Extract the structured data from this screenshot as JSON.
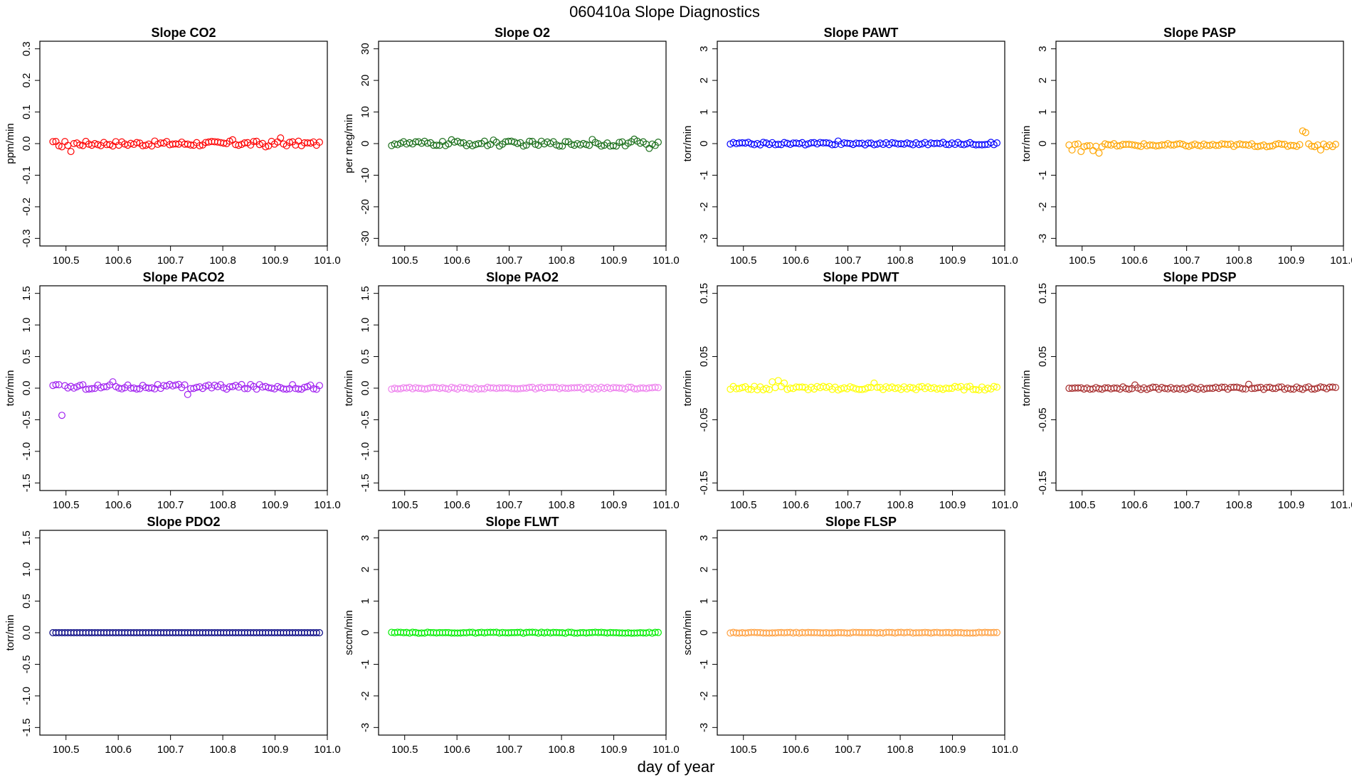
{
  "page": {
    "title": "060410a   Slope Diagnostics",
    "xlabel": "day of year"
  },
  "chart_data": [
    {
      "type": "scatter",
      "title": "Slope CO2",
      "ylabel": "ppm/min",
      "color": "#ff0000",
      "ylim": [
        -0.3,
        0.3
      ],
      "yticks": [
        "-0.3",
        "-0.2",
        "-0.1",
        "0.0",
        "0.1",
        "0.2",
        "0.3"
      ],
      "ytick_values": [
        -0.3,
        -0.2,
        -0.1,
        0.0,
        0.1,
        0.2,
        0.3
      ],
      "xlim": [
        100.45,
        101.0
      ],
      "xticks": [
        "100.5",
        "100.6",
        "100.7",
        "100.8",
        "100.9",
        "101.0"
      ],
      "xtick_values": [
        100.5,
        100.6,
        100.7,
        100.8,
        100.9,
        101.0
      ],
      "x_start": 100.475,
      "x_end": 100.985,
      "n_points": 90,
      "y_base": 0.0,
      "y_noise": 0.008,
      "outliers": [
        {
          "x": 100.49,
          "y": -0.01
        },
        {
          "x": 100.51,
          "y": -0.025
        },
        {
          "x": 100.82,
          "y": 0.012
        },
        {
          "x": 100.91,
          "y": 0.018
        },
        {
          "x": 100.88,
          "y": -0.01
        }
      ]
    },
    {
      "type": "scatter",
      "title": "Slope O2",
      "ylabel": "per meg/min",
      "color": "#1a6e1a",
      "ylim": [
        -30,
        30
      ],
      "yticks": [
        "-30",
        "-20",
        "-10",
        "0",
        "10",
        "20",
        "30"
      ],
      "ytick_values": [
        -30,
        -20,
        -10,
        0,
        10,
        20,
        30
      ],
      "xlim": [
        100.45,
        101.0
      ],
      "xticks": [
        "100.5",
        "100.6",
        "100.7",
        "100.8",
        "100.9",
        "101.0"
      ],
      "xtick_values": [
        100.5,
        100.6,
        100.7,
        100.8,
        100.9,
        101.0
      ],
      "x_start": 100.475,
      "x_end": 100.985,
      "n_points": 90,
      "y_base": 0.0,
      "y_noise": 0.8,
      "outliers": [
        {
          "x": 100.59,
          "y": 1.2
        },
        {
          "x": 100.67,
          "y": 1.1
        },
        {
          "x": 100.86,
          "y": 1.3
        },
        {
          "x": 100.94,
          "y": 1.4
        },
        {
          "x": 100.97,
          "y": -1.5
        }
      ]
    },
    {
      "type": "scatter",
      "title": "Slope PAWT",
      "ylabel": "torr/min",
      "color": "#0000ff",
      "ylim": [
        -3,
        3
      ],
      "yticks": [
        "-3",
        "-2",
        "-1",
        "0",
        "1",
        "2",
        "3"
      ],
      "ytick_values": [
        -3,
        -2,
        -1,
        0,
        1,
        2,
        3
      ],
      "xlim": [
        100.45,
        101.0
      ],
      "xticks": [
        "100.5",
        "100.6",
        "100.7",
        "100.8",
        "100.9",
        "101.0"
      ],
      "xtick_values": [
        100.5,
        100.6,
        100.7,
        100.8,
        100.9,
        101.0
      ],
      "x_start": 100.475,
      "x_end": 100.985,
      "n_points": 90,
      "y_base": 0.0,
      "y_noise": 0.04,
      "outliers": [
        {
          "x": 100.68,
          "y": 0.08
        }
      ]
    },
    {
      "type": "scatter",
      "title": "Slope PASP",
      "ylabel": "torr/min",
      "color": "#ffa500",
      "ylim": [
        -3,
        3
      ],
      "yticks": [
        "-3",
        "-2",
        "-1",
        "0",
        "1",
        "2",
        "3"
      ],
      "ytick_values": [
        -3,
        -2,
        -1,
        0,
        1,
        2,
        3
      ],
      "xlim": [
        100.45,
        101.0
      ],
      "xticks": [
        "100.5",
        "100.6",
        "100.7",
        "100.8",
        "100.9",
        "101.0"
      ],
      "xtick_values": [
        100.5,
        100.6,
        100.7,
        100.8,
        100.9,
        101.0
      ],
      "x_start": 100.475,
      "x_end": 100.985,
      "n_points": 90,
      "y_base": -0.05,
      "y_noise": 0.05,
      "outliers": [
        {
          "x": 100.48,
          "y": -0.2
        },
        {
          "x": 100.5,
          "y": -0.25
        },
        {
          "x": 100.52,
          "y": -0.22
        },
        {
          "x": 100.535,
          "y": -0.3
        },
        {
          "x": 100.92,
          "y": 0.4
        },
        {
          "x": 100.925,
          "y": 0.35
        },
        {
          "x": 100.955,
          "y": -0.2
        }
      ]
    },
    {
      "type": "scatter",
      "title": "Slope PACO2",
      "ylabel": "torr/min",
      "color": "#a020f0",
      "ylim": [
        -1.5,
        1.5
      ],
      "yticks": [
        "-1.5",
        "-1.0",
        "-0.5",
        "0.0",
        "0.5",
        "1.0",
        "1.5"
      ],
      "ytick_values": [
        -1.5,
        -1.0,
        -0.5,
        0.0,
        0.5,
        1.0,
        1.5
      ],
      "xlim": [
        100.45,
        101.0
      ],
      "xticks": [
        "100.5",
        "100.6",
        "100.7",
        "100.8",
        "100.9",
        "101.0"
      ],
      "xtick_values": [
        100.5,
        100.6,
        100.7,
        100.8,
        100.9,
        101.0
      ],
      "x_start": 100.475,
      "x_end": 100.985,
      "n_points": 90,
      "y_base": 0.02,
      "y_noise": 0.04,
      "outliers": [
        {
          "x": 100.49,
          "y": -0.43
        },
        {
          "x": 100.59,
          "y": 0.1
        },
        {
          "x": 100.73,
          "y": -0.1
        }
      ]
    },
    {
      "type": "scatter",
      "title": "Slope PAO2",
      "ylabel": "torr/min",
      "color": "#ee82ee",
      "ylim": [
        -1.5,
        1.5
      ],
      "yticks": [
        "-1.5",
        "-1.0",
        "-0.5",
        "0.0",
        "0.5",
        "1.0",
        "1.5"
      ],
      "ytick_values": [
        -1.5,
        -1.0,
        -0.5,
        0.0,
        0.5,
        1.0,
        1.5
      ],
      "xlim": [
        100.45,
        101.0
      ],
      "xticks": [
        "100.5",
        "100.6",
        "100.7",
        "100.8",
        "100.9",
        "101.0"
      ],
      "xtick_values": [
        100.5,
        100.6,
        100.7,
        100.8,
        100.9,
        101.0
      ],
      "x_start": 100.475,
      "x_end": 100.985,
      "n_points": 90,
      "y_base": 0.0,
      "y_noise": 0.015,
      "outliers": []
    },
    {
      "type": "scatter",
      "title": "Slope PDWT",
      "ylabel": "torr/min",
      "color": "#ffff00",
      "ylim": [
        -0.15,
        0.15
      ],
      "yticks": [
        "-0.15",
        "-0.05",
        "0.05",
        "0.15"
      ],
      "ytick_values": [
        -0.15,
        -0.05,
        0.05,
        0.15
      ],
      "xlim": [
        100.45,
        101.0
      ],
      "xticks": [
        "100.5",
        "100.6",
        "100.7",
        "100.8",
        "100.9",
        "101.0"
      ],
      "xtick_values": [
        100.5,
        100.6,
        100.7,
        100.8,
        100.9,
        101.0
      ],
      "x_start": 100.475,
      "x_end": 100.985,
      "n_points": 90,
      "y_base": 0.0,
      "y_noise": 0.003,
      "outliers": [
        {
          "x": 100.555,
          "y": 0.01
        },
        {
          "x": 100.565,
          "y": 0.012
        },
        {
          "x": 100.58,
          "y": 0.008
        },
        {
          "x": 100.75,
          "y": 0.008
        }
      ]
    },
    {
      "type": "scatter",
      "title": "Slope PDSP",
      "ylabel": "torr/min",
      "color": "#a52a2a",
      "ylim": [
        -0.15,
        0.15
      ],
      "yticks": [
        "-0.15",
        "-0.05",
        "0.05",
        "0.15"
      ],
      "ytick_values": [
        -0.15,
        -0.05,
        0.05,
        0.15
      ],
      "xlim": [
        100.45,
        101.0
      ],
      "xticks": [
        "100.5",
        "100.6",
        "100.7",
        "100.8",
        "100.9",
        "101.0"
      ],
      "xtick_values": [
        100.5,
        100.6,
        100.7,
        100.8,
        100.9,
        101.0
      ],
      "x_start": 100.475,
      "x_end": 100.985,
      "n_points": 90,
      "y_base": 0.0,
      "y_noise": 0.002,
      "outliers": [
        {
          "x": 100.6,
          "y": 0.005
        },
        {
          "x": 100.82,
          "y": 0.006
        }
      ]
    },
    {
      "type": "scatter",
      "title": "Slope PDO2",
      "ylabel": "torr/min",
      "color": "#000080",
      "ylim": [
        -1.5,
        1.5
      ],
      "yticks": [
        "-1.5",
        "-1.0",
        "-0.5",
        "0.0",
        "0.5",
        "1.0",
        "1.5"
      ],
      "ytick_values": [
        -1.5,
        -1.0,
        -0.5,
        0.0,
        0.5,
        1.0,
        1.5
      ],
      "xlim": [
        100.45,
        101.0
      ],
      "xticks": [
        "100.5",
        "100.6",
        "100.7",
        "100.8",
        "100.9",
        "101.0"
      ],
      "xtick_values": [
        100.5,
        100.6,
        100.7,
        100.8,
        100.9,
        101.0
      ],
      "x_start": 100.475,
      "x_end": 100.985,
      "n_points": 90,
      "y_base": 0.0,
      "y_noise": 0.0,
      "outliers": []
    },
    {
      "type": "scatter",
      "title": "Slope FLWT",
      "ylabel": "sccm/min",
      "color": "#00ee00",
      "ylim": [
        -3,
        3
      ],
      "yticks": [
        "-3",
        "-2",
        "-1",
        "0",
        "1",
        "2",
        "3"
      ],
      "ytick_values": [
        -3,
        -2,
        -1,
        0,
        1,
        2,
        3
      ],
      "xlim": [
        100.45,
        101.0
      ],
      "xticks": [
        "100.5",
        "100.6",
        "100.7",
        "100.8",
        "100.9",
        "101.0"
      ],
      "xtick_values": [
        100.5,
        100.6,
        100.7,
        100.8,
        100.9,
        101.0
      ],
      "x_start": 100.475,
      "x_end": 100.985,
      "n_points": 90,
      "y_base": 0.0,
      "y_noise": 0.015,
      "outliers": []
    },
    {
      "type": "scatter",
      "title": "Slope FLSP",
      "ylabel": "sccm/min",
      "color": "#ffa040",
      "ylim": [
        -3,
        3
      ],
      "yticks": [
        "-3",
        "-2",
        "-1",
        "0",
        "1",
        "2",
        "3"
      ],
      "ytick_values": [
        -3,
        -2,
        -1,
        0,
        1,
        2,
        3
      ],
      "xlim": [
        100.45,
        101.0
      ],
      "xticks": [
        "100.5",
        "100.6",
        "100.7",
        "100.8",
        "100.9",
        "101.0"
      ],
      "xtick_values": [
        100.5,
        100.6,
        100.7,
        100.8,
        100.9,
        101.0
      ],
      "x_start": 100.475,
      "x_end": 100.985,
      "n_points": 90,
      "y_base": 0.0,
      "y_noise": 0.012,
      "outliers": []
    }
  ]
}
